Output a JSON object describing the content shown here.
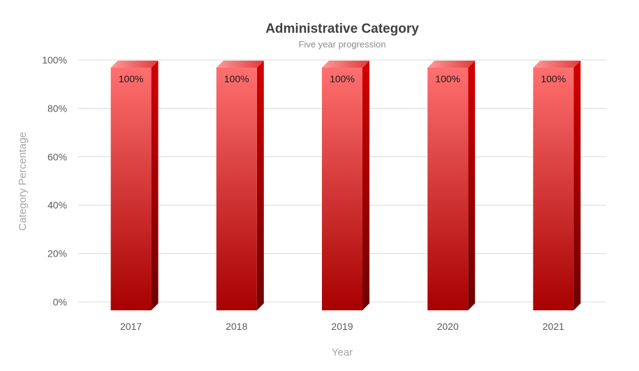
{
  "chart_data": {
    "type": "bar",
    "title": "Administrative Category",
    "subtitle": "Five year progression",
    "xlabel": "Year",
    "ylabel": "Category Percentage",
    "categories": [
      "2017",
      "2018",
      "2019",
      "2020",
      "2021"
    ],
    "values": [
      100,
      100,
      100,
      100,
      100
    ],
    "data_labels": [
      "100%",
      "100%",
      "100%",
      "100%",
      "100%"
    ],
    "ylim": [
      0,
      100
    ],
    "yticks": [
      0,
      20,
      40,
      60,
      80,
      100
    ],
    "ytick_labels": [
      "0%",
      "20%",
      "40%",
      "60%",
      "80%",
      "100%"
    ],
    "grid": true,
    "legend": "none",
    "style": "3d-column",
    "colors": {
      "bar_top": "#ff7070",
      "bar_bottom": "#a80000",
      "bar_side": "#8b0000",
      "gridline": "#d9d9d9"
    }
  }
}
